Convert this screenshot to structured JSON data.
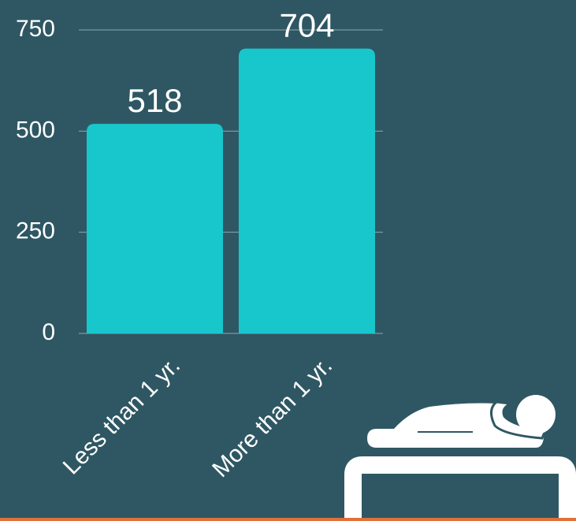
{
  "chart_data": {
    "type": "bar",
    "categories": [
      "Less than 1 yr.",
      "More than 1 yr."
    ],
    "values": [
      518,
      704
    ],
    "color": "#17c7cc",
    "ylim": [
      0,
      750
    ],
    "yticks": [
      0,
      250,
      500,
      750
    ],
    "grid": true
  }
}
